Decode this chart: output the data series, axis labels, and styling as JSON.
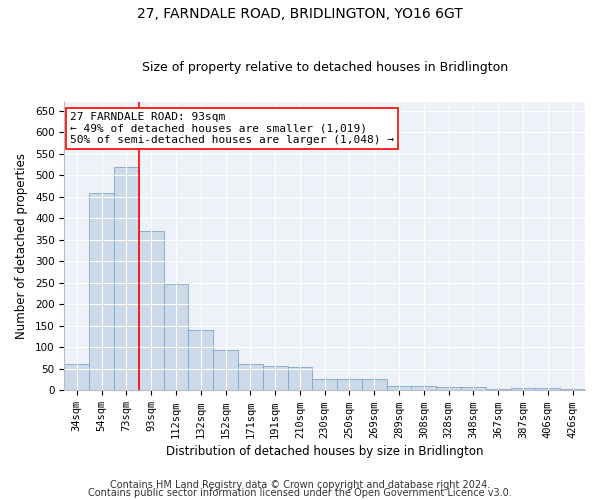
{
  "title": "27, FARNDALE ROAD, BRIDLINGTON, YO16 6GT",
  "subtitle": "Size of property relative to detached houses in Bridlington",
  "xlabel": "Distribution of detached houses by size in Bridlington",
  "ylabel": "Number of detached properties",
  "categories": [
    "34sqm",
    "54sqm",
    "73sqm",
    "93sqm",
    "112sqm",
    "132sqm",
    "152sqm",
    "171sqm",
    "191sqm",
    "210sqm",
    "230sqm",
    "250sqm",
    "269sqm",
    "289sqm",
    "308sqm",
    "328sqm",
    "348sqm",
    "367sqm",
    "387sqm",
    "406sqm",
    "426sqm"
  ],
  "values": [
    62,
    458,
    520,
    370,
    247,
    140,
    93,
    62,
    57,
    55,
    26,
    26,
    26,
    11,
    11,
    7,
    8,
    4,
    5,
    5,
    4
  ],
  "bar_color": "#ccd9e8",
  "bar_edge_color": "#7aa8cc",
  "red_line_x": 3,
  "annotation_line1": "27 FARNDALE ROAD: 93sqm",
  "annotation_line2": "← 49% of detached houses are smaller (1,019)",
  "annotation_line3": "50% of semi-detached houses are larger (1,048) →",
  "footer_line1": "Contains HM Land Registry data © Crown copyright and database right 2024.",
  "footer_line2": "Contains public sector information licensed under the Open Government Licence v3.0.",
  "ylim": [
    0,
    670
  ],
  "yticks": [
    0,
    50,
    100,
    150,
    200,
    250,
    300,
    350,
    400,
    450,
    500,
    550,
    600,
    650
  ],
  "bg_color": "#eef2f8",
  "grid_color": "#ffffff",
  "title_fontsize": 10,
  "subtitle_fontsize": 9,
  "axis_label_fontsize": 8.5,
  "tick_fontsize": 7.5,
  "annotation_fontsize": 8,
  "footer_fontsize": 7
}
